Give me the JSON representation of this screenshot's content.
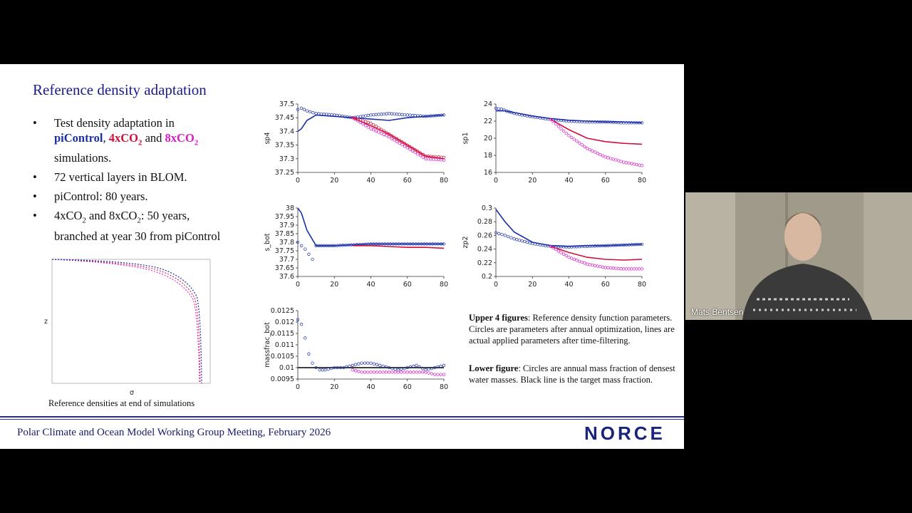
{
  "slide": {
    "title": "Reference density adaptation",
    "bullets": {
      "b1_pre": "Test density adaptation in",
      "b1_pi": "piControl",
      "b1_sep": ",",
      "b1_4x": "4xCO",
      "b1_4x_sub": "2",
      "b1_and": "and",
      "b1_8x": "8xCO",
      "b1_8x_sub": "2",
      "b1_post": "simulations.",
      "b2": "72 vertical layers in BLOM.",
      "b3": "piControl: 80 years.",
      "b4_a": "4xCO",
      "b4_a_sub": "2",
      "b4_and": "and 8xCO",
      "b4_b_sub": "2",
      "b4_rest": ": 50 years,",
      "b4_line2": "branched at year 30 from piControl"
    },
    "ref_caption": "Reference densities at end of simulations",
    "ref_plot": {
      "xlabel": "σ",
      "ylabel": "z"
    },
    "caption_upper_bold": "Upper 4 figures",
    "caption_upper": ": Reference density function parameters. Circles are parameters after annual optimization, lines are actual applied parameters after time-filtering.",
    "caption_lower_bold": "Lower figure",
    "caption_lower": ": Circles are annual mass fraction of densest water masses. Black line is the target mass fraction.",
    "footer": "Polar Climate and Ocean Model Working Group Meeting, February 2026",
    "logo": "NORCE"
  },
  "colors": {
    "piControl": "#1a2fa8",
    "4xCO2": "#d0103a",
    "8xCO2": "#d91cc7",
    "title": "#1a1a8c"
  },
  "webcam": {
    "name": "Mats Bentsen"
  },
  "chart_data": [
    {
      "id": "sp4",
      "type": "line",
      "ylabel": "sp4",
      "xlim": [
        0,
        80
      ],
      "ylim": [
        37.25,
        37.5
      ],
      "xticks": [
        "0",
        "20",
        "40",
        "60",
        "80"
      ],
      "yticks": [
        "37.25",
        "37.3",
        "37.35",
        "37.4",
        "37.45",
        "37.5"
      ],
      "series": [
        {
          "x": [
            0,
            2,
            5,
            10,
            20,
            30,
            40,
            50,
            60,
            70,
            80
          ],
          "y": [
            37.4,
            37.41,
            37.44,
            37.46,
            37.455,
            37.45,
            37.445,
            37.44,
            37.45,
            37.455,
            37.46
          ]
        },
        {
          "x": [
            0,
            2,
            5,
            10,
            20,
            30,
            40,
            50,
            60,
            70,
            80
          ],
          "y": [
            37.48,
            37.485,
            37.475,
            37.465,
            37.46,
            37.45,
            37.46,
            37.465,
            37.46,
            37.455,
            37.46
          ]
        },
        {
          "x": [
            30,
            40,
            50,
            60,
            70,
            80
          ],
          "y": [
            37.45,
            37.42,
            37.39,
            37.35,
            37.31,
            37.3
          ]
        },
        {
          "x": [
            30,
            40,
            50,
            60,
            70,
            80
          ],
          "y": [
            37.45,
            37.41,
            37.38,
            37.34,
            37.3,
            37.295
          ]
        },
        {
          "x": [
            30,
            40,
            50,
            60,
            70,
            80
          ],
          "y": [
            37.45,
            37.43,
            37.39,
            37.35,
            37.31,
            37.305
          ]
        }
      ]
    },
    {
      "id": "sp1",
      "type": "line",
      "ylabel": "sp1",
      "xlim": [
        0,
        80
      ],
      "ylim": [
        16,
        24
      ],
      "xticks": [
        "0",
        "20",
        "40",
        "60",
        "80"
      ],
      "yticks": [
        "16",
        "18",
        "20",
        "22",
        "24"
      ],
      "series": [
        {
          "x": [
            0,
            5,
            10,
            20,
            30,
            40,
            50,
            60,
            70,
            80
          ],
          "y": [
            23.2,
            23.2,
            23.0,
            22.6,
            22.3,
            22.1,
            22.0,
            21.9,
            21.9,
            21.8
          ]
        },
        {
          "x": [
            0,
            3,
            10,
            20,
            30,
            40,
            50,
            60,
            70,
            80
          ],
          "y": [
            23.5,
            23.4,
            22.9,
            22.5,
            22.2,
            22.0,
            21.9,
            21.9,
            21.8,
            21.8
          ]
        },
        {
          "x": [
            30,
            40,
            50,
            60,
            70,
            80
          ],
          "y": [
            22.2,
            21.0,
            20.0,
            19.6,
            19.4,
            19.3
          ]
        },
        {
          "x": [
            30,
            40,
            50,
            60,
            70,
            80
          ],
          "y": [
            22.2,
            20.3,
            18.8,
            17.8,
            17.2,
            16.8
          ]
        }
      ]
    },
    {
      "id": "s_bot",
      "type": "line",
      "ylabel": "s_bot",
      "xlim": [
        0,
        80
      ],
      "ylim": [
        37.6,
        38
      ],
      "xticks": [
        "0",
        "20",
        "40",
        "60",
        "80"
      ],
      "yticks": [
        "37.6",
        "37.65",
        "37.7",
        "37.75",
        "37.8",
        "37.85",
        "37.9",
        "37.95",
        "38"
      ],
      "series": [
        {
          "x": [
            0,
            2,
            5,
            10,
            20,
            40,
            60,
            80
          ],
          "y": [
            38.0,
            37.97,
            37.87,
            37.78,
            37.78,
            37.79,
            37.79,
            37.79
          ]
        },
        {
          "x": [
            0,
            2,
            4,
            6,
            8,
            10,
            20,
            40,
            60,
            80
          ],
          "y": [
            37.8,
            37.78,
            37.76,
            37.73,
            37.7,
            37.78,
            37.78,
            37.79,
            37.79,
            37.79
          ]
        },
        {
          "x": [
            30,
            40,
            50,
            60,
            70,
            80
          ],
          "y": [
            37.78,
            37.78,
            37.775,
            37.77,
            37.77,
            37.765
          ]
        }
      ]
    },
    {
      "id": "zp2",
      "type": "line",
      "ylabel": "zp2",
      "xlim": [
        0,
        80
      ],
      "ylim": [
        0.2,
        0.3
      ],
      "xticks": [
        "0",
        "20",
        "40",
        "60",
        "80"
      ],
      "yticks": [
        "0.2",
        "0.22",
        "0.24",
        "0.26",
        "0.28",
        "0.3"
      ],
      "series": [
        {
          "x": [
            0,
            5,
            10,
            20,
            30,
            40,
            50,
            60,
            70,
            80
          ],
          "y": [
            0.298,
            0.28,
            0.265,
            0.25,
            0.245,
            0.244,
            0.245,
            0.245,
            0.246,
            0.247
          ]
        },
        {
          "x": [
            0,
            5,
            10,
            20,
            30,
            40,
            50,
            60,
            70,
            80
          ],
          "y": [
            0.264,
            0.26,
            0.255,
            0.248,
            0.244,
            0.243,
            0.244,
            0.245,
            0.246,
            0.247
          ]
        },
        {
          "x": [
            30,
            40,
            50,
            60,
            70,
            80
          ],
          "y": [
            0.244,
            0.235,
            0.228,
            0.225,
            0.224,
            0.225
          ]
        },
        {
          "x": [
            30,
            40,
            50,
            60,
            70,
            80
          ],
          "y": [
            0.244,
            0.228,
            0.218,
            0.213,
            0.211,
            0.211
          ]
        }
      ]
    },
    {
      "id": "massfrac_bot",
      "type": "scatter",
      "ylabel": "massfrac_bot",
      "xlim": [
        0,
        80
      ],
      "ylim": [
        0.0095,
        0.0125
      ],
      "xticks": [
        "0",
        "20",
        "40",
        "60",
        "80"
      ],
      "yticks": [
        "0.0095",
        "0.01",
        "0.0105",
        "0.011",
        "0.0115",
        "0.012",
        "0.0125"
      ],
      "target": 0.01,
      "series": [
        {
          "x": [
            0,
            2,
            4,
            6,
            8,
            10,
            12,
            15,
            20,
            25,
            30,
            35,
            40,
            45,
            50,
            55,
            60,
            65,
            70,
            75,
            80
          ],
          "y": [
            0.0121,
            0.0119,
            0.0113,
            0.0106,
            0.0102,
            0.01,
            0.0099,
            0.0099,
            0.01,
            0.01,
            0.0101,
            0.0102,
            0.0102,
            0.0101,
            0.01,
            0.0099,
            0.01,
            0.0101,
            0.0099,
            0.01,
            0.0101
          ]
        },
        {
          "x": [
            30,
            35,
            40,
            45,
            50,
            55,
            60,
            65,
            70,
            75,
            80
          ],
          "y": [
            0.0099,
            0.0098,
            0.0098,
            0.0098,
            0.0098,
            0.0098,
            0.0098,
            0.0098,
            0.0098,
            0.0097,
            0.0097
          ]
        }
      ]
    }
  ]
}
